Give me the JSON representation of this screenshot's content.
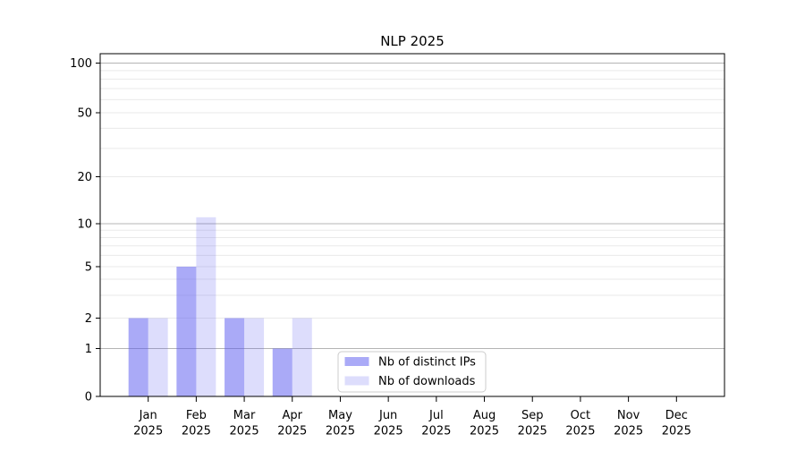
{
  "figure": {
    "title": "NLP 2025"
  },
  "chart_data": {
    "type": "bar",
    "title": "NLP 2025",
    "categories": [
      "Jan 2025",
      "Feb 2025",
      "Mar 2025",
      "Apr 2025",
      "May 2025",
      "Jun 2025",
      "Jul 2025",
      "Aug 2025",
      "Sep 2025",
      "Oct 2025",
      "Nov 2025",
      "Dec 2025"
    ],
    "series": [
      {
        "name": "Nb of distinct IPs",
        "color": "rgba(85,85,240,0.5)",
        "values": [
          2,
          5,
          2,
          1,
          0,
          0,
          0,
          0,
          0,
          0,
          0,
          0
        ]
      },
      {
        "name": "Nb of downloads",
        "color": "rgba(85,85,240,0.2)",
        "values": [
          2,
          11,
          2,
          2,
          0,
          0,
          0,
          0,
          0,
          0,
          0,
          0
        ]
      }
    ],
    "xlabel": "",
    "ylabel": "",
    "yticks": [
      0,
      1,
      2,
      5,
      10,
      20,
      50,
      100
    ],
    "major_gridlines": [
      1,
      10,
      100
    ],
    "minor_gridlines": [
      2,
      3,
      4,
      5,
      6,
      7,
      8,
      9,
      20,
      30,
      40,
      50,
      60,
      70,
      80,
      90
    ],
    "ylim": [
      0,
      115
    ],
    "scale": "symlog-like (0 then log decades 1-100)",
    "grid": "horizontal",
    "legend": {
      "position": "inside-bottom-center",
      "items": [
        "Nb of distinct IPs",
        "Nb of downloads"
      ]
    }
  },
  "colors": {
    "bar_distinct_ips": "rgba(85,85,240,0.5)",
    "bar_downloads": "rgba(85,85,240,0.2)",
    "grid_major": "#b4b4b4",
    "grid_minor": "#eaeaea",
    "axis": "#000000",
    "legend_border": "#cccccc",
    "legend_background": "#ffffff",
    "background": "#ffffff"
  }
}
